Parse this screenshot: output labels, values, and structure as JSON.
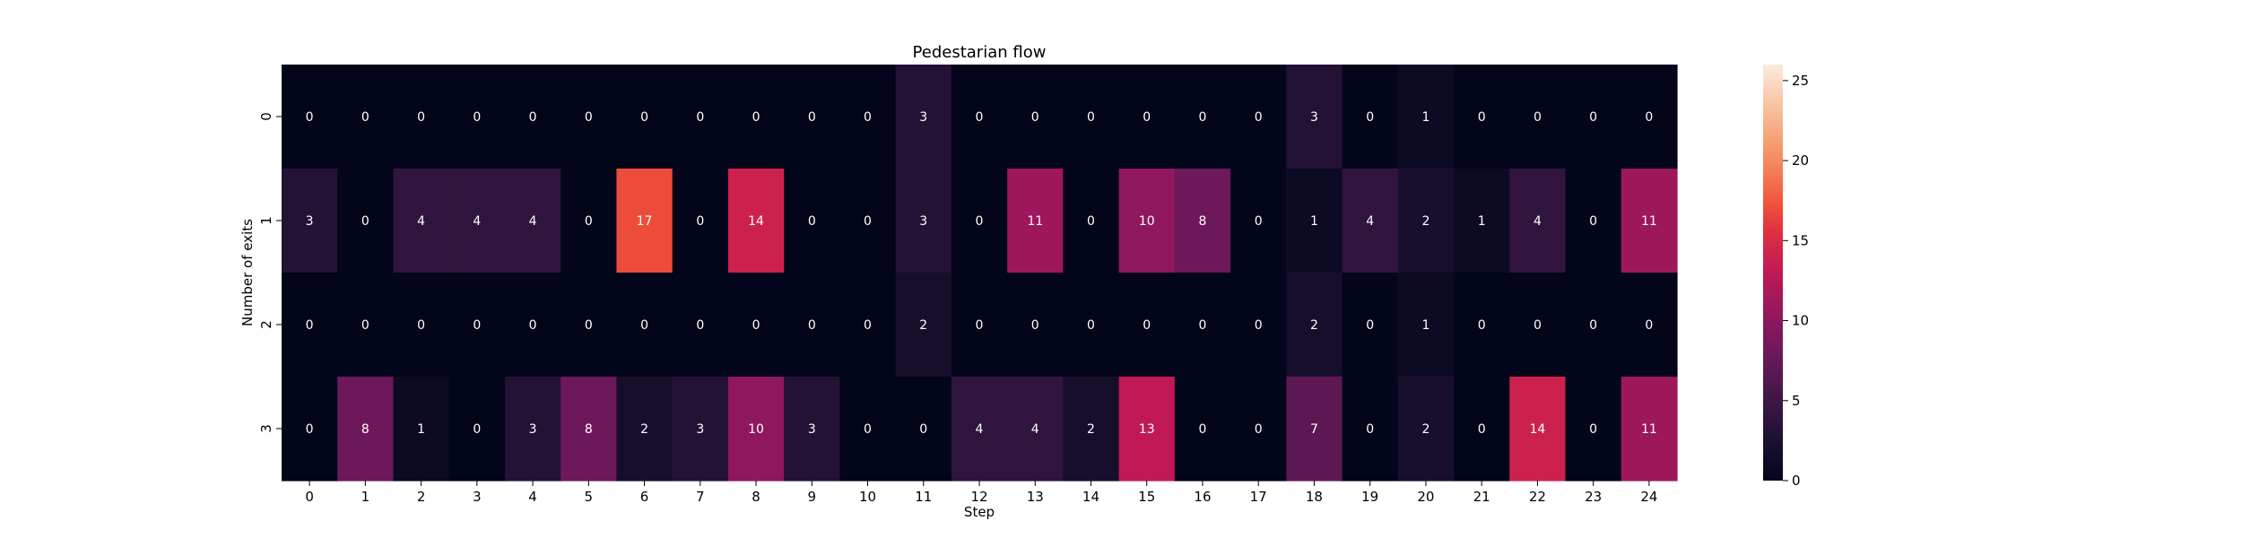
{
  "chart_data": {
    "type": "heatmap",
    "title": "Pedestarian flow",
    "xlabel": "Step",
    "ylabel": "Number of exits",
    "x_categories": [
      "0",
      "1",
      "2",
      "3",
      "4",
      "5",
      "6",
      "7",
      "8",
      "9",
      "10",
      "11",
      "12",
      "13",
      "14",
      "15",
      "16",
      "17",
      "18",
      "19",
      "20",
      "21",
      "22",
      "23",
      "24"
    ],
    "y_categories": [
      "0",
      "1",
      "2",
      "3"
    ],
    "values": [
      [
        0,
        0,
        0,
        0,
        0,
        0,
        0,
        0,
        0,
        0,
        0,
        3,
        0,
        0,
        0,
        0,
        0,
        0,
        3,
        0,
        1,
        0,
        0,
        0,
        0
      ],
      [
        3,
        0,
        4,
        4,
        4,
        0,
        17,
        0,
        14,
        0,
        0,
        3,
        0,
        11,
        0,
        10,
        8,
        0,
        1,
        4,
        2,
        1,
        4,
        0,
        11
      ],
      [
        0,
        0,
        0,
        0,
        0,
        0,
        0,
        0,
        0,
        0,
        0,
        2,
        0,
        0,
        0,
        0,
        0,
        0,
        2,
        0,
        1,
        0,
        0,
        0,
        0
      ],
      [
        0,
        8,
        1,
        0,
        3,
        8,
        2,
        3,
        10,
        3,
        0,
        0,
        4,
        4,
        2,
        13,
        0,
        0,
        7,
        0,
        2,
        0,
        14,
        0,
        11
      ]
    ],
    "colorbar": {
      "range": [
        0,
        26
      ],
      "ticks": [
        0,
        5,
        10,
        15,
        20,
        25
      ],
      "colormap": "rocket"
    },
    "grid": false,
    "legend": "colorbar-right"
  }
}
